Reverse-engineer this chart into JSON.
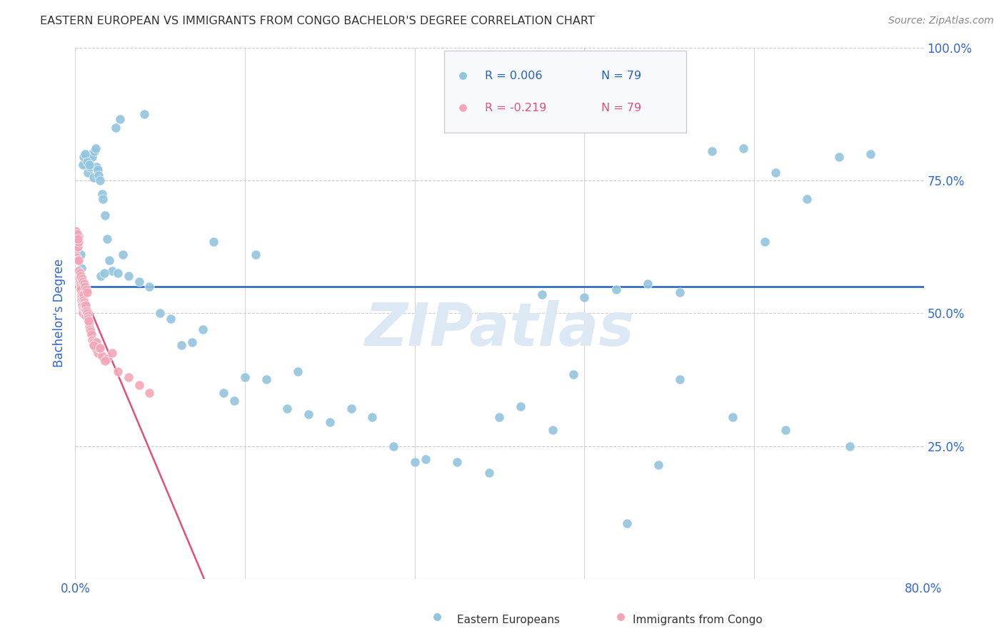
{
  "title": "EASTERN EUROPEAN VS IMMIGRANTS FROM CONGO BACHELOR'S DEGREE CORRELATION CHART",
  "source_text": "Source: ZipAtlas.com",
  "ylabel": "Bachelor's Degree",
  "watermark": "ZIPatlas",
  "r_blue": "0.006",
  "n_blue": "79",
  "r_pink": "-0.219",
  "n_pink": "79",
  "xlim": [
    0.0,
    80.0
  ],
  "ylim": [
    0.0,
    100.0
  ],
  "blue_color": "#92c5de",
  "pink_color": "#f4a6b8",
  "regression_blue_color": "#2060c0",
  "regression_pink_color": "#e0507a",
  "axis_color": "#3366cc",
  "background_color": "#ffffff",
  "grid_color": "#cccccc",
  "title_color": "#333333",
  "watermark_color": "#dde8f5",
  "blue_regression_y": 55.0,
  "blue_x": [
    1.0,
    1.2,
    1.4,
    1.5,
    1.6,
    1.7,
    1.8,
    1.9,
    2.0,
    2.1,
    2.2,
    2.3,
    2.5,
    2.6,
    2.8,
    3.0,
    3.2,
    3.5,
    4.0,
    4.5,
    5.0,
    6.0,
    7.0,
    8.0,
    9.0,
    10.0,
    11.0,
    12.0,
    14.0,
    15.0,
    16.0,
    18.0,
    20.0,
    22.0,
    24.0,
    26.0,
    28.0,
    30.0,
    33.0,
    36.0,
    39.0,
    42.0,
    45.0,
    48.0,
    51.0,
    54.0,
    57.0,
    60.0,
    63.0,
    66.0,
    69.0,
    72.0,
    75.0,
    0.5,
    0.6,
    0.7,
    0.8,
    0.9,
    1.1,
    1.3,
    2.4,
    2.7,
    3.8,
    6.5,
    13.0,
    17.0,
    21.0,
    32.0,
    40.0,
    47.0,
    52.0,
    57.0,
    62.0,
    67.0,
    73.0,
    44.0,
    55.0,
    65.0,
    4.2
  ],
  "blue_y": [
    78.0,
    76.5,
    77.5,
    80.0,
    79.5,
    75.5,
    80.5,
    81.0,
    77.5,
    77.0,
    76.0,
    75.0,
    72.5,
    71.5,
    68.5,
    64.0,
    60.0,
    58.0,
    57.5,
    61.0,
    57.0,
    56.0,
    55.0,
    50.0,
    49.0,
    44.0,
    44.5,
    47.0,
    35.0,
    33.5,
    38.0,
    37.5,
    32.0,
    31.0,
    29.5,
    32.0,
    30.5,
    25.0,
    22.5,
    22.0,
    20.0,
    32.5,
    28.0,
    53.0,
    54.5,
    55.5,
    54.0,
    80.5,
    81.0,
    76.5,
    71.5,
    79.5,
    80.0,
    61.0,
    58.5,
    78.0,
    79.5,
    80.0,
    78.5,
    78.0,
    57.0,
    57.5,
    85.0,
    87.5,
    63.5,
    61.0,
    39.0,
    22.0,
    30.5,
    38.5,
    10.5,
    37.5,
    30.5,
    28.0,
    25.0,
    53.5,
    21.5,
    63.5,
    86.5
  ],
  "pink_x": [
    0.05,
    0.08,
    0.1,
    0.12,
    0.15,
    0.18,
    0.2,
    0.22,
    0.25,
    0.28,
    0.3,
    0.32,
    0.35,
    0.38,
    0.4,
    0.42,
    0.45,
    0.48,
    0.5,
    0.52,
    0.55,
    0.58,
    0.6,
    0.62,
    0.65,
    0.68,
    0.7,
    0.72,
    0.75,
    0.78,
    0.8,
    0.82,
    0.85,
    0.88,
    0.9,
    0.92,
    0.95,
    0.98,
    1.0,
    1.05,
    1.1,
    1.15,
    1.2,
    1.25,
    1.3,
    1.35,
    1.4,
    1.45,
    1.5,
    1.6,
    1.7,
    1.8,
    1.9,
    2.0,
    2.1,
    2.2,
    2.5,
    3.0,
    3.5,
    4.0,
    5.0,
    6.0,
    7.0,
    0.07,
    0.14,
    0.24,
    0.34,
    0.44,
    0.54,
    0.64,
    0.74,
    0.84,
    0.94,
    1.04,
    1.14,
    1.24,
    1.75,
    2.3,
    2.8
  ],
  "pink_y": [
    62.0,
    60.5,
    64.5,
    63.5,
    57.5,
    60.0,
    56.5,
    58.0,
    62.5,
    63.5,
    64.5,
    60.0,
    57.5,
    57.0,
    56.5,
    56.0,
    55.0,
    55.5,
    55.0,
    54.5,
    53.5,
    53.0,
    52.5,
    52.0,
    51.5,
    51.0,
    50.5,
    50.0,
    53.0,
    53.5,
    52.5,
    52.0,
    51.5,
    51.0,
    50.5,
    50.5,
    50.0,
    49.5,
    51.5,
    50.5,
    50.0,
    49.5,
    49.0,
    48.5,
    48.0,
    47.5,
    47.0,
    46.5,
    46.0,
    45.0,
    44.5,
    44.0,
    43.5,
    44.5,
    42.5,
    43.5,
    42.0,
    41.5,
    42.5,
    39.0,
    38.0,
    36.5,
    35.0,
    65.5,
    65.0,
    64.0,
    58.0,
    57.5,
    57.0,
    56.5,
    56.0,
    55.5,
    55.0,
    54.5,
    54.0,
    48.5,
    44.0,
    43.5,
    41.0
  ]
}
